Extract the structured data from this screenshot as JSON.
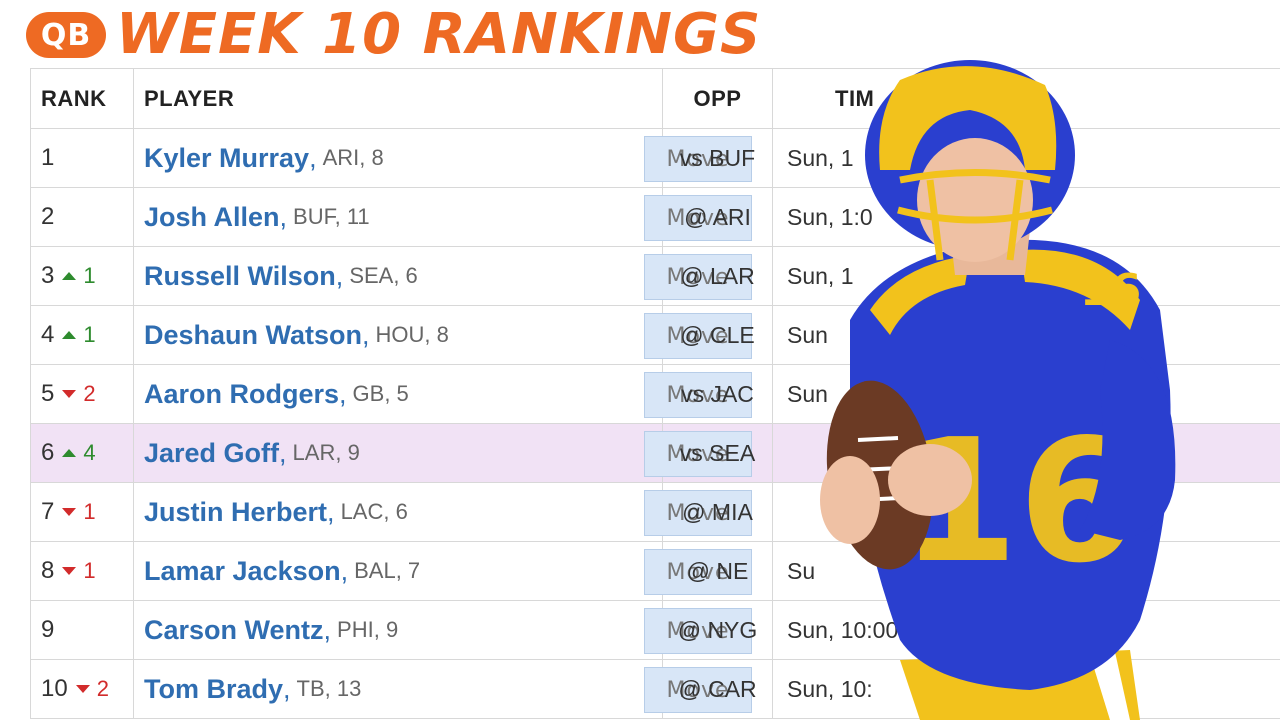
{
  "header": {
    "badge": "QB",
    "title": "WEEK 10 RANKINGS"
  },
  "columns": {
    "rank": "RANK",
    "player": "PLAYER",
    "opp": "OPP",
    "time": "TIM"
  },
  "move_label": "Move",
  "jersey_number": "16",
  "rows": [
    {
      "rank": "1",
      "change": "",
      "direction": "",
      "name": "Kyler Murray",
      "meta": "ARI, 8",
      "opp": "vs BUF",
      "time": "Sun, 1",
      "highlight": false
    },
    {
      "rank": "2",
      "change": "",
      "direction": "",
      "name": "Josh Allen",
      "meta": "BUF, 11",
      "opp": "@ ARI",
      "time": "Sun, 1:0",
      "highlight": false
    },
    {
      "rank": "3",
      "change": "1",
      "direction": "up",
      "name": "Russell Wilson",
      "meta": "SEA, 6",
      "opp": "@ LAR",
      "time": "Sun, 1",
      "highlight": false
    },
    {
      "rank": "4",
      "change": "1",
      "direction": "up",
      "name": "Deshaun Watson",
      "meta": "HOU, 8",
      "opp": "@ CLE",
      "time": "Sun",
      "highlight": false
    },
    {
      "rank": "5",
      "change": "2",
      "direction": "down",
      "name": "Aaron Rodgers",
      "meta": "GB, 5",
      "opp": "vs JAC",
      "time": "Sun",
      "highlight": false
    },
    {
      "rank": "6",
      "change": "4",
      "direction": "up",
      "name": "Jared Goff",
      "meta": "LAR, 9",
      "opp": "vs SEA",
      "time": "",
      "highlight": true
    },
    {
      "rank": "7",
      "change": "1",
      "direction": "down",
      "name": "Justin Herbert",
      "meta": "LAC, 6",
      "opp": "@ MIA",
      "time": "",
      "highlight": false
    },
    {
      "rank": "8",
      "change": "1",
      "direction": "down",
      "name": "Lamar Jackson",
      "meta": "BAL, 7",
      "opp": "@ NE",
      "time": "Su",
      "highlight": false
    },
    {
      "rank": "9",
      "change": "",
      "direction": "",
      "name": "Carson Wentz",
      "meta": "PHI, 9",
      "opp": "@ NYG",
      "time": "Sun, 10:00 A",
      "highlight": false
    },
    {
      "rank": "10",
      "change": "2",
      "direction": "down",
      "name": "Tom Brady",
      "meta": "TB, 13",
      "opp": "@ CAR",
      "time": "Sun, 10:",
      "highlight": false
    }
  ],
  "colors": {
    "accent": "#ee6a23",
    "link": "#2f6db1",
    "up": "#2e8b2e",
    "down": "#d22b2b",
    "highlight_row": "#f1e2f5",
    "jersey": "#2a3fcf",
    "helmet": "#f2c21c"
  }
}
